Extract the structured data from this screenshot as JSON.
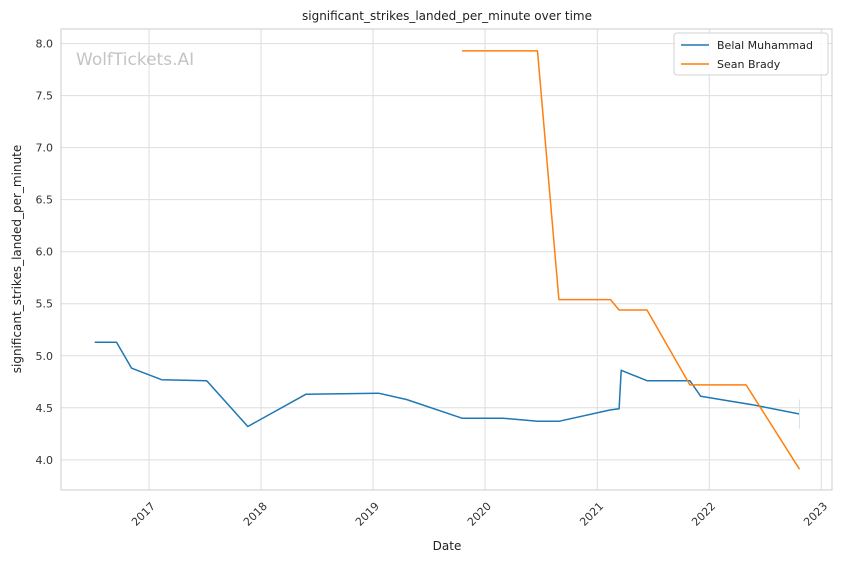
{
  "chart_data": {
    "type": "line",
    "title": "significant_strikes_landed_per_minute over time",
    "xlabel": "Date",
    "ylabel": "significant_strikes_landed_per_minute",
    "watermark": "WolfTickets.AI",
    "x_ticks": [
      "2017",
      "2018",
      "2019",
      "2020",
      "2021",
      "2022",
      "2023"
    ],
    "y_ticks": [
      "4.0",
      "4.5",
      "5.0",
      "5.5",
      "6.0",
      "6.5",
      "7.0",
      "7.5",
      "8.0"
    ],
    "xlim": [
      "2016-03-20",
      "2023-02-05"
    ],
    "ylim": [
      3.71,
      8.14
    ],
    "grid": true,
    "legend_position": "top-right",
    "series": [
      {
        "name": "Belal Muhammad",
        "color": "#1f77b4",
        "points": [
          [
            "2016-07-08",
            5.13
          ],
          [
            "2016-09-17",
            5.13
          ],
          [
            "2016-11-05",
            4.88
          ],
          [
            "2017-02-11",
            4.77
          ],
          [
            "2017-07-08",
            4.76
          ],
          [
            "2017-11-19",
            4.32
          ],
          [
            "2018-05-27",
            4.63
          ],
          [
            "2019-01-19",
            4.64
          ],
          [
            "2019-04-20",
            4.58
          ],
          [
            "2019-10-18",
            4.4
          ],
          [
            "2020-02-29",
            4.4
          ],
          [
            "2020-06-20",
            4.37
          ],
          [
            "2020-08-29",
            4.37
          ],
          [
            "2021-02-13",
            4.48
          ],
          [
            "2021-03-13",
            4.49
          ],
          [
            "2021-03-20",
            4.86
          ],
          [
            "2021-06-12",
            4.76
          ],
          [
            "2021-10-30",
            4.76
          ],
          [
            "2021-12-04",
            4.61
          ],
          [
            "2022-05-21",
            4.53
          ],
          [
            "2022-10-22",
            4.44
          ]
        ]
      },
      {
        "name": "Sean Brady",
        "color": "#ff7f0e",
        "points": [
          [
            "2019-10-18",
            7.93
          ],
          [
            "2020-06-20",
            7.93
          ],
          [
            "2020-08-29",
            5.54
          ],
          [
            "2021-02-13",
            5.54
          ],
          [
            "2021-03-13",
            5.44
          ],
          [
            "2021-06-12",
            5.44
          ],
          [
            "2021-10-30",
            4.72
          ],
          [
            "2022-05-01",
            4.72
          ],
          [
            "2022-10-22",
            3.91
          ]
        ]
      }
    ]
  }
}
